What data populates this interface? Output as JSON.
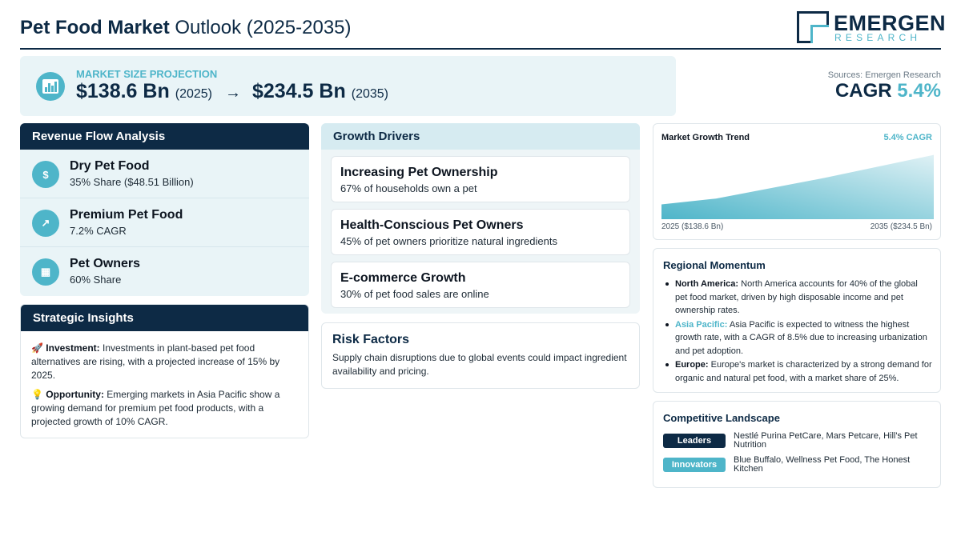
{
  "header": {
    "title_bold": "Pet Food Market",
    "title_rest": "Outlook (2025-2035)",
    "logo_name": "EMERGEN",
    "logo_sub": "RESEARCH"
  },
  "projection": {
    "label": "MARKET SIZE PROJECTION",
    "icon": "bar-chart-icon",
    "start_value": "$138.6 Bn",
    "start_year": "(2025)",
    "arrow": "→",
    "end_value": "$234.5 Bn",
    "end_year": "(2035)"
  },
  "summary": {
    "sources": "Sources: Emergen Research",
    "cagr_label": "CAGR",
    "cagr_value": "5.4%"
  },
  "revenue": {
    "heading": "Revenue Flow Analysis",
    "items": [
      {
        "icon": "money-bag-icon",
        "glyph": "$",
        "title": "Dry Pet Food",
        "sub": "35% Share ($48.51 Billion)"
      },
      {
        "icon": "trend-up-icon",
        "glyph": "↗",
        "title": "Premium Pet Food",
        "sub": "7.2% CAGR"
      },
      {
        "icon": "building-icon",
        "glyph": "▦",
        "title": "Pet Owners",
        "sub": "60% Share"
      }
    ]
  },
  "insights": {
    "heading": "Strategic Insights",
    "items": [
      {
        "icon": "rocket-icon",
        "glyph": "🚀",
        "label": "Investment:",
        "text": "Investments in plant-based pet food alternatives are rising, with a projected increase of 15% by 2025."
      },
      {
        "icon": "lightbulb-icon",
        "glyph": "💡",
        "label": "Opportunity:",
        "text": "Emerging markets in Asia Pacific show a growing demand for premium pet food products, with a projected growth of 10% CAGR."
      }
    ]
  },
  "drivers": {
    "heading": "Growth Drivers",
    "items": [
      {
        "title": "Increasing Pet Ownership",
        "sub": "67% of households own a pet"
      },
      {
        "title": "Health-Conscious Pet Owners",
        "sub": "45% of pet owners prioritize natural ingredients"
      },
      {
        "title": "E-commerce Growth",
        "sub": "30% of pet food sales are online"
      }
    ]
  },
  "risk": {
    "title": "Risk Factors",
    "text": "Supply chain disruptions due to global events could impact ingredient availability and pricing."
  },
  "trend": {
    "title": "Market Growth Trend",
    "cagr": "5.4% CAGR",
    "start_label": "2025 ($138.6 Bn)",
    "end_label": "2035 ($234.5 Bn)",
    "colors": {
      "fill_top": "#4eb5c9",
      "fill_bottom": "#dff1f5"
    }
  },
  "chart_data": {
    "type": "area",
    "x": [
      2025,
      2027,
      2031,
      2035
    ],
    "values": [
      138.6,
      150,
      190,
      234.5
    ],
    "ylim": [
      110,
      240
    ]
  },
  "regional": {
    "title": "Regional Momentum",
    "items": [
      {
        "label": "North America:",
        "text": "North America accounts for 40% of the global pet food market, driven by high disposable income and pet ownership rates.",
        "highlight": false
      },
      {
        "label": "Asia Pacific:",
        "text": "Asia Pacific is expected to witness the highest growth rate, with a CAGR of 8.5% due to increasing urbanization and pet adoption.",
        "highlight": true
      },
      {
        "label": "Europe:",
        "text": "Europe's market is characterized by a strong demand for organic and natural pet food, with a market share of 25%.",
        "highlight": false
      }
    ]
  },
  "competitive": {
    "title": "Competitive Landscape",
    "rows": [
      {
        "badge": "Leaders",
        "color": "#0d2a45",
        "text": "Nestlé Purina PetCare, Mars Petcare, Hill's Pet Nutrition"
      },
      {
        "badge": "Innovators",
        "color": "#4eb5c9",
        "text": "Blue Buffalo, Wellness Pet Food, The Honest Kitchen"
      }
    ]
  }
}
